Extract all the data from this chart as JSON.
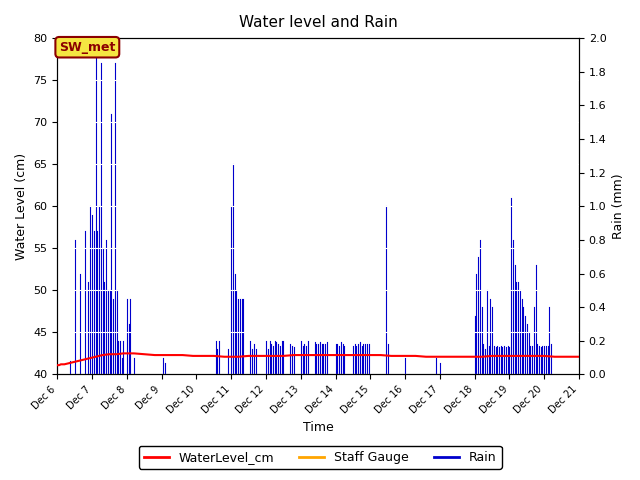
{
  "title": "Water level and Rain",
  "xlabel": "Time",
  "ylabel_left": "Water Level (cm)",
  "ylabel_right": "Rain (mm)",
  "annotation": "SW_met",
  "ylim_left": [
    40,
    80
  ],
  "ylim_right": [
    0.0,
    2.0
  ],
  "yticks_left": [
    40,
    45,
    50,
    55,
    60,
    65,
    70,
    75,
    80
  ],
  "yticks_right": [
    0.0,
    0.2,
    0.4,
    0.6,
    0.8,
    1.0,
    1.2,
    1.4,
    1.6,
    1.8,
    2.0
  ],
  "water_level_color": "#ff0000",
  "rain_color": "#0000cc",
  "staff_gauge_color": "#ffa500",
  "bg_color": "#e8e8e8",
  "legend_items": [
    "WaterLevel_cm",
    "Staff Gauge",
    "Rain"
  ],
  "xtick_labels": [
    "Dec 6",
    "Dec 7",
    "Dec 8",
    "Dec 9",
    "Dec 10",
    "Dec 11",
    "Dec 12",
    "Dec 13",
    "Dec 14",
    "Dec 15",
    "Dec 16",
    "Dec 17",
    "Dec 18",
    "Dec 19",
    "Dec 20",
    "Dec 21"
  ],
  "water_level_x": [
    6.0,
    6.05,
    6.1,
    6.15,
    6.2,
    6.3,
    6.4,
    6.5,
    6.6,
    6.7,
    6.8,
    6.9,
    7.0,
    7.1,
    7.2,
    7.3,
    7.5,
    7.7,
    7.9,
    8.0,
    8.2,
    8.5,
    8.8,
    9.0,
    9.3,
    9.6,
    9.9,
    10.2,
    10.5,
    10.8,
    11.0,
    11.2,
    11.5,
    11.8,
    12.0,
    12.2,
    12.5,
    12.8,
    13.0,
    13.2,
    13.5,
    13.8,
    14.0,
    14.2,
    14.5,
    14.8,
    15.0,
    15.3,
    15.6,
    16.0,
    16.3,
    16.6,
    16.9,
    17.2,
    17.5,
    17.8,
    18.0,
    18.2,
    18.5,
    18.8,
    19.0,
    19.2,
    19.5,
    19.8,
    20.0,
    20.3,
    20.6,
    20.9,
    21.0
  ],
  "water_level_y": [
    41.1,
    41.1,
    41.2,
    41.2,
    41.2,
    41.3,
    41.4,
    41.5,
    41.6,
    41.7,
    41.8,
    41.9,
    42.0,
    42.1,
    42.2,
    42.3,
    42.4,
    42.4,
    42.5,
    42.5,
    42.5,
    42.4,
    42.3,
    42.3,
    42.3,
    42.3,
    42.2,
    42.2,
    42.2,
    42.1,
    42.1,
    42.1,
    42.2,
    42.2,
    42.2,
    42.2,
    42.2,
    42.3,
    42.3,
    42.3,
    42.3,
    42.3,
    42.3,
    42.3,
    42.3,
    42.3,
    42.3,
    42.3,
    42.2,
    42.2,
    42.2,
    42.1,
    42.1,
    42.1,
    42.1,
    42.1,
    42.1,
    42.1,
    42.2,
    42.2,
    42.2,
    42.2,
    42.2,
    42.2,
    42.2,
    42.1,
    42.1,
    42.1,
    42.1
  ],
  "rain_events": [
    [
      6.35,
      0.08
    ],
    [
      6.5,
      0.8
    ],
    [
      6.65,
      0.6
    ],
    [
      6.8,
      0.85
    ],
    [
      6.88,
      0.55
    ],
    [
      6.95,
      1.0
    ],
    [
      7.0,
      0.95
    ],
    [
      7.05,
      0.85
    ],
    [
      7.1,
      2.0
    ],
    [
      7.15,
      0.85
    ],
    [
      7.2,
      1.0
    ],
    [
      7.25,
      1.85
    ],
    [
      7.3,
      0.75
    ],
    [
      7.35,
      0.55
    ],
    [
      7.4,
      0.8
    ],
    [
      7.45,
      0.5
    ],
    [
      7.5,
      0.5
    ],
    [
      7.55,
      1.55
    ],
    [
      7.6,
      0.45
    ],
    [
      7.65,
      1.85
    ],
    [
      7.7,
      0.5
    ],
    [
      7.75,
      0.2
    ],
    [
      7.8,
      0.2
    ],
    [
      7.85,
      0.1
    ],
    [
      7.9,
      0.2
    ],
    [
      8.0,
      0.45
    ],
    [
      8.05,
      0.3
    ],
    [
      8.1,
      0.45
    ],
    [
      8.2,
      0.1
    ],
    [
      9.05,
      0.1
    ],
    [
      9.1,
      0.07
    ],
    [
      10.55,
      0.2
    ],
    [
      10.6,
      0.15
    ],
    [
      10.65,
      0.2
    ],
    [
      10.9,
      0.15
    ],
    [
      11.0,
      1.0
    ],
    [
      11.05,
      1.25
    ],
    [
      11.1,
      0.6
    ],
    [
      11.15,
      0.5
    ],
    [
      11.2,
      0.45
    ],
    [
      11.25,
      0.45
    ],
    [
      11.3,
      0.45
    ],
    [
      11.35,
      0.45
    ],
    [
      11.55,
      0.2
    ],
    [
      11.6,
      0.15
    ],
    [
      11.65,
      0.18
    ],
    [
      11.7,
      0.15
    ],
    [
      12.0,
      0.2
    ],
    [
      12.05,
      0.15
    ],
    [
      12.1,
      0.2
    ],
    [
      12.15,
      0.18
    ],
    [
      12.2,
      0.17
    ],
    [
      12.25,
      0.2
    ],
    [
      12.3,
      0.19
    ],
    [
      12.35,
      0.18
    ],
    [
      12.4,
      0.17
    ],
    [
      12.45,
      0.2
    ],
    [
      12.5,
      0.2
    ],
    [
      12.7,
      0.18
    ],
    [
      12.75,
      0.17
    ],
    [
      12.8,
      0.16
    ],
    [
      13.0,
      0.2
    ],
    [
      13.05,
      0.17
    ],
    [
      13.1,
      0.18
    ],
    [
      13.15,
      0.17
    ],
    [
      13.2,
      0.2
    ],
    [
      13.4,
      0.19
    ],
    [
      13.45,
      0.18
    ],
    [
      13.5,
      0.18
    ],
    [
      13.55,
      0.19
    ],
    [
      13.6,
      0.18
    ],
    [
      13.65,
      0.18
    ],
    [
      13.7,
      0.18
    ],
    [
      13.75,
      0.19
    ],
    [
      14.0,
      0.18
    ],
    [
      14.05,
      0.18
    ],
    [
      14.1,
      0.17
    ],
    [
      14.15,
      0.19
    ],
    [
      14.2,
      0.18
    ],
    [
      14.25,
      0.17
    ],
    [
      14.5,
      0.17
    ],
    [
      14.55,
      0.18
    ],
    [
      14.6,
      0.17
    ],
    [
      14.65,
      0.18
    ],
    [
      14.7,
      0.19
    ],
    [
      14.75,
      0.17
    ],
    [
      14.8,
      0.18
    ],
    [
      14.85,
      0.18
    ],
    [
      14.9,
      0.18
    ],
    [
      14.95,
      0.18
    ],
    [
      15.45,
      1.0
    ],
    [
      15.5,
      0.18
    ],
    [
      16.0,
      0.1
    ],
    [
      16.9,
      0.1
    ],
    [
      17.0,
      0.07
    ],
    [
      18.0,
      0.35
    ],
    [
      18.05,
      0.6
    ],
    [
      18.1,
      0.7
    ],
    [
      18.15,
      0.8
    ],
    [
      18.2,
      0.4
    ],
    [
      18.25,
      0.18
    ],
    [
      18.3,
      0.15
    ],
    [
      18.35,
      0.5
    ],
    [
      18.4,
      0.17
    ],
    [
      18.45,
      0.45
    ],
    [
      18.5,
      0.4
    ],
    [
      18.55,
      0.17
    ],
    [
      18.6,
      0.16
    ],
    [
      18.65,
      0.17
    ],
    [
      18.7,
      0.16
    ],
    [
      18.75,
      0.17
    ],
    [
      18.8,
      0.16
    ],
    [
      18.85,
      0.17
    ],
    [
      18.9,
      0.16
    ],
    [
      18.95,
      0.17
    ],
    [
      19.0,
      0.16
    ],
    [
      19.05,
      1.05
    ],
    [
      19.1,
      0.8
    ],
    [
      19.15,
      0.65
    ],
    [
      19.2,
      0.55
    ],
    [
      19.25,
      0.55
    ],
    [
      19.3,
      0.5
    ],
    [
      19.35,
      0.45
    ],
    [
      19.4,
      0.4
    ],
    [
      19.45,
      0.35
    ],
    [
      19.5,
      0.3
    ],
    [
      19.55,
      0.25
    ],
    [
      19.6,
      0.17
    ],
    [
      19.65,
      0.17
    ],
    [
      19.7,
      0.4
    ],
    [
      19.75,
      0.65
    ],
    [
      19.8,
      0.18
    ],
    [
      19.85,
      0.17
    ],
    [
      19.9,
      0.16
    ],
    [
      19.95,
      0.17
    ],
    [
      20.0,
      0.17
    ],
    [
      20.05,
      0.17
    ],
    [
      20.1,
      0.17
    ],
    [
      20.15,
      0.4
    ],
    [
      20.2,
      0.18
    ]
  ],
  "xtick_positions": [
    6,
    7,
    8,
    9,
    10,
    11,
    12,
    13,
    14,
    15,
    16,
    17,
    18,
    19,
    20,
    21
  ]
}
